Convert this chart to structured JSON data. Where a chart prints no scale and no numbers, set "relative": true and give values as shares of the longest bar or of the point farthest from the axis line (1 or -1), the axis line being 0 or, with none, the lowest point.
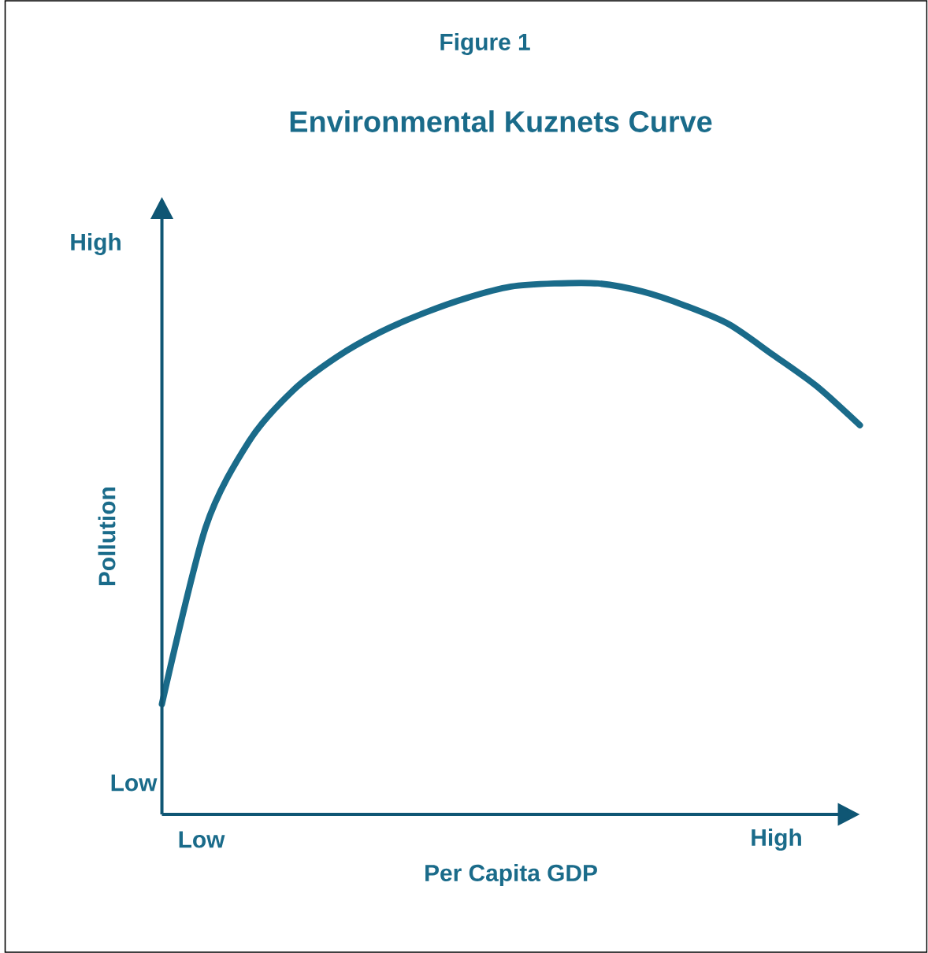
{
  "chart_data": {
    "type": "line",
    "title": "Figure 1",
    "subtitle": "Environmental Kuznets Curve",
    "xlabel": "Per Capita GDP",
    "ylabel": "Pollution",
    "relative": true,
    "color": "#1a6b8a",
    "categories": [
      null,
      null,
      null,
      null,
      null,
      null,
      null,
      null,
      null,
      null,
      null,
      null,
      null,
      null,
      null,
      null,
      null
    ],
    "values": [
      0.208,
      0.54,
      0.703,
      0.798,
      0.861,
      0.908,
      0.944,
      0.973,
      0.994,
      1,
      1,
      0.985,
      0.958,
      0.923,
      0.866,
      0.807,
      0.733
    ],
    "annotations": [
      "Low",
      "High",
      "Low",
      "High"
    ]
  }
}
